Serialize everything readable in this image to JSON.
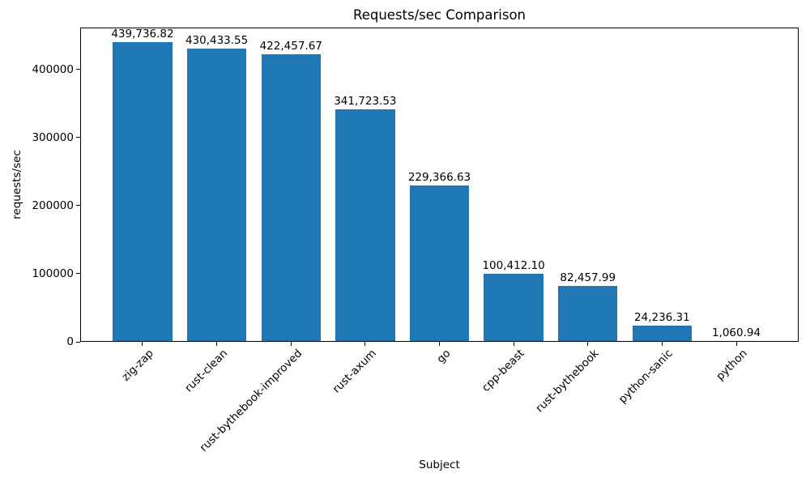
{
  "chart_data": {
    "type": "bar",
    "title": "Requests/sec Comparison",
    "xlabel": "Subject",
    "ylabel": "requests/sec",
    "categories": [
      "zig-zap",
      "rust-clean",
      "rust-bythebook-improved",
      "rust-axum",
      "go",
      "cpp-beast",
      "rust-bythebook",
      "python-sanic",
      "python"
    ],
    "values": [
      439736.82,
      430433.55,
      422457.67,
      341723.53,
      229366.63,
      100412.1,
      82457.99,
      24236.31,
      1060.94
    ],
    "value_labels": [
      "439,736.82",
      "430,433.55",
      "422,457.67",
      "341,723.53",
      "229,366.63",
      "100,412.10",
      "82,457.99",
      "24,236.31",
      "1,060.94"
    ],
    "yticks": [
      0,
      100000,
      200000,
      300000,
      400000
    ],
    "ytick_labels": [
      "0",
      "100000",
      "200000",
      "300000",
      "400000"
    ],
    "ylim": [
      0,
      461724
    ],
    "bar_color": "#1f77b4",
    "grid": false,
    "legend_position": "none"
  }
}
